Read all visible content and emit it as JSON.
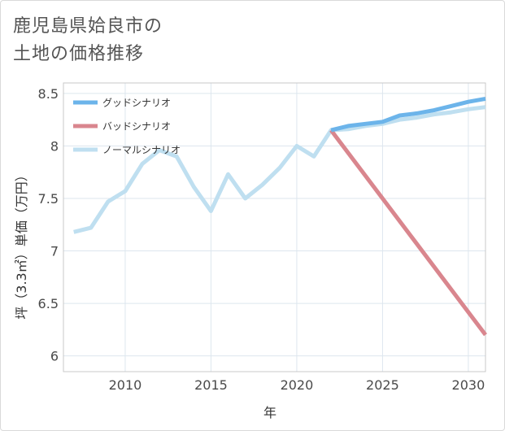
{
  "title": {
    "line1": "鹿児島県姶良市の",
    "line2": "土地の価格推移"
  },
  "chart_data": {
    "type": "line",
    "xlabel": "年",
    "ylabel": "坪（3.3㎡）単価（万円）",
    "xlim": [
      2006.4,
      2031
    ],
    "ylim": [
      5.85,
      8.6
    ],
    "xticks": [
      2010,
      2015,
      2020,
      2025,
      2030
    ],
    "yticks": [
      6,
      6.5,
      7,
      7.5,
      8,
      8.5
    ],
    "xtick_labels": [
      "2010",
      "2015",
      "2020",
      "2025",
      "2030"
    ],
    "ytick_labels": [
      "6",
      "6.5",
      "7",
      "7.5",
      "8",
      "8.5"
    ],
    "legend_position": "top-left",
    "series": [
      {
        "name": "グッドシナリオ",
        "color": "#6cb4ea",
        "x": [
          2022,
          2023,
          2024,
          2025,
          2026,
          2027,
          2028,
          2029,
          2030,
          2031
        ],
        "y": [
          8.15,
          8.19,
          8.21,
          8.23,
          8.29,
          8.31,
          8.34,
          8.38,
          8.42,
          8.45
        ]
      },
      {
        "name": "バッドシナリオ",
        "color": "#d9868e",
        "x": [
          2022,
          2031
        ],
        "y": [
          8.15,
          6.2
        ]
      },
      {
        "name": "ノーマルシナリオ",
        "color": "#bfdff0",
        "x": [
          2007,
          2008,
          2009,
          2010,
          2011,
          2012,
          2013,
          2014,
          2015,
          2016,
          2017,
          2018,
          2019,
          2020,
          2021,
          2022,
          2023,
          2024,
          2025,
          2026,
          2027,
          2028,
          2029,
          2030,
          2031
        ],
        "y": [
          7.18,
          7.22,
          7.47,
          7.57,
          7.83,
          7.96,
          7.9,
          7.61,
          7.38,
          7.73,
          7.5,
          7.63,
          7.79,
          8.0,
          7.9,
          8.15,
          8.16,
          8.19,
          8.21,
          8.25,
          8.27,
          8.3,
          8.32,
          8.35,
          8.37
        ]
      }
    ]
  }
}
